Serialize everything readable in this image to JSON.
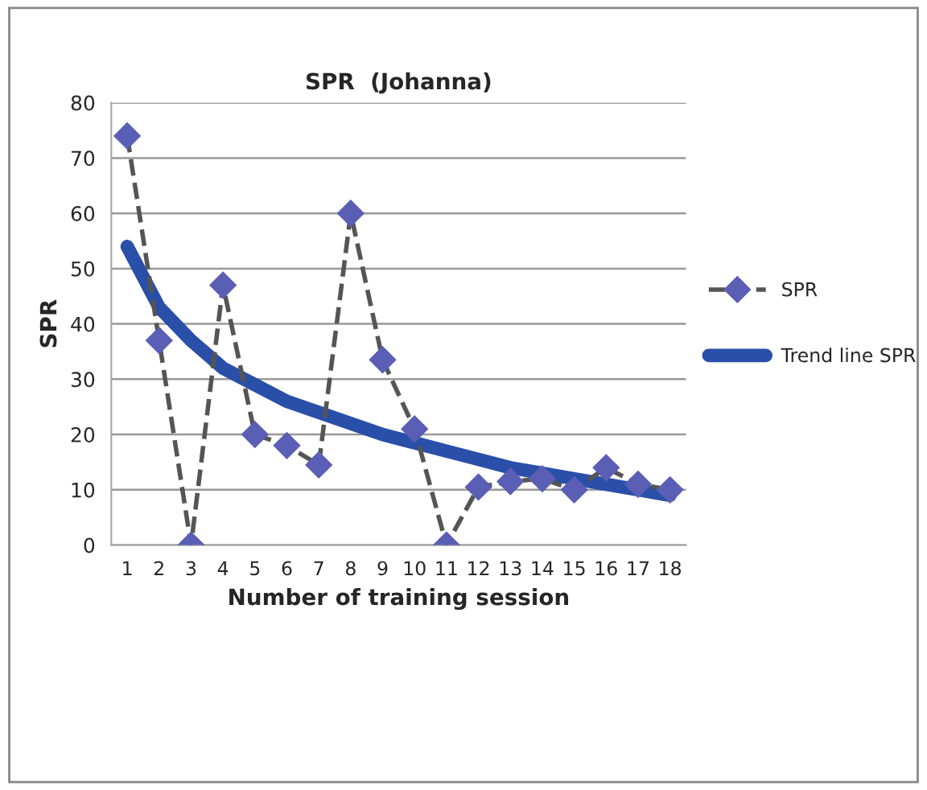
{
  "chart_data": {
    "type": "line",
    "title": "SPR  (Johanna)",
    "xlabel": "Number of training session",
    "ylabel": "SPR",
    "categories": [
      "1",
      "2",
      "3",
      "4",
      "5",
      "6",
      "7",
      "8",
      "9",
      "10",
      "11",
      "12",
      "13",
      "14",
      "15",
      "16",
      "17",
      "18"
    ],
    "series": [
      {
        "name": "SPR",
        "color": "#5a5fb5",
        "marker": "diamond",
        "line_style": "dashed",
        "values": [
          74,
          37,
          0,
          47,
          20,
          18,
          14.5,
          60,
          33.5,
          21,
          0,
          10.5,
          11.5,
          12,
          10,
          14,
          11,
          10
        ]
      },
      {
        "name": "Trend line SPR",
        "color": "#2a4fa8",
        "marker": "none",
        "line_style": "solid",
        "values": [
          54,
          43,
          37,
          32,
          29,
          26,
          24,
          22,
          20,
          18.5,
          17,
          15.5,
          14,
          13,
          12,
          11,
          10,
          9
        ]
      }
    ],
    "ylim": [
      0,
      80
    ],
    "yticks": [
      0,
      10,
      20,
      30,
      40,
      50,
      60,
      70,
      80
    ],
    "grid": "y",
    "legend": "right"
  }
}
